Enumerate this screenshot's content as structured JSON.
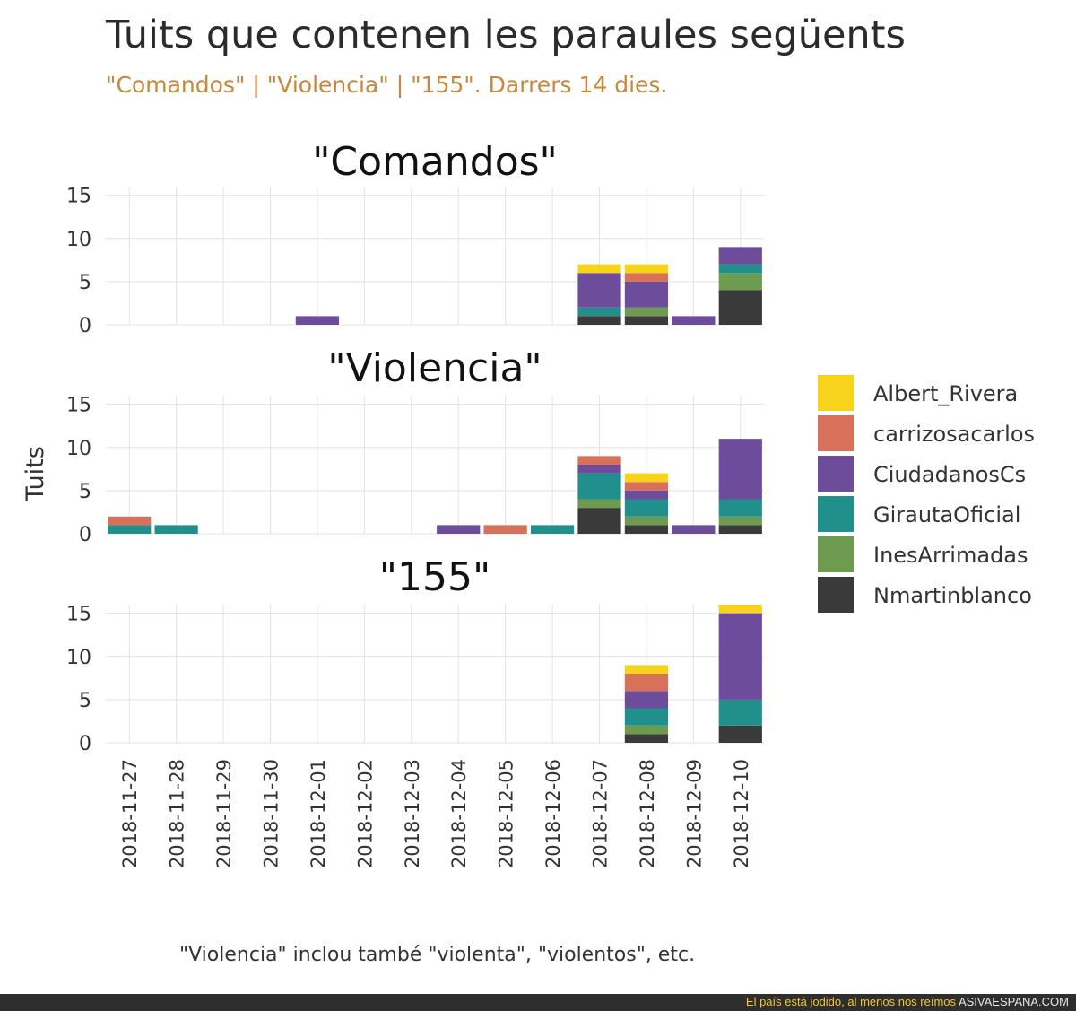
{
  "title": "Tuits que contenen les paraules següents",
  "subtitle": "\"Comandos\" | \"Violencia\" | \"155\". Darrers 14 dies.",
  "caption": "\"Violencia\" inclou també \"violenta\", \"violentos\", etc.",
  "footer": {
    "tagline": "El país está jodido, al menos nos reímos",
    "site": "ASIVAESPANA.COM"
  },
  "chart_data": {
    "type": "bar",
    "stacked": true,
    "facets": [
      "\"Comandos\"",
      "\"Violencia\"",
      "\"155\""
    ],
    "ylabel": "Tuits",
    "xlabel": "",
    "ylim": [
      0,
      16
    ],
    "yticks": [
      0,
      5,
      10,
      15
    ],
    "grid": true,
    "legend_position": "right",
    "categories": [
      "2018-11-27",
      "2018-11-28",
      "2018-11-29",
      "2018-11-30",
      "2018-12-01",
      "2018-12-02",
      "2018-12-03",
      "2018-12-04",
      "2018-12-05",
      "2018-12-06",
      "2018-12-07",
      "2018-12-08",
      "2018-12-09",
      "2018-12-10"
    ],
    "series_order_bottom_to_top": [
      "Nmartinblanco",
      "InesArrimadas",
      "GirautaOficial",
      "CiudadanosCs",
      "carrizosacarlos",
      "Albert_Rivera"
    ],
    "legend_order": [
      "Albert_Rivera",
      "carrizosacarlos",
      "CiudadanosCs",
      "GirautaOficial",
      "InesArrimadas",
      "Nmartinblanco"
    ],
    "colors": {
      "Albert_Rivera": "#f7d31c",
      "carrizosacarlos": "#d9705a",
      "CiudadanosCs": "#6d4c9c",
      "GirautaOficial": "#21908d",
      "InesArrimadas": "#6e9b4f",
      "Nmartinblanco": "#3a3a3a"
    },
    "panels": [
      {
        "facet": "\"Comandos\"",
        "series": [
          {
            "name": "Albert_Rivera",
            "values": [
              0,
              0,
              0,
              0,
              0,
              0,
              0,
              0,
              0,
              0,
              1,
              1,
              0,
              0
            ]
          },
          {
            "name": "carrizosacarlos",
            "values": [
              0,
              0,
              0,
              0,
              0,
              0,
              0,
              0,
              0,
              0,
              0,
              1,
              0,
              0
            ]
          },
          {
            "name": "CiudadanosCs",
            "values": [
              0,
              0,
              0,
              0,
              1,
              0,
              0,
              0,
              0,
              0,
              4,
              3,
              1,
              2
            ]
          },
          {
            "name": "GirautaOficial",
            "values": [
              0,
              0,
              0,
              0,
              0,
              0,
              0,
              0,
              0,
              0,
              1,
              0,
              0,
              1
            ]
          },
          {
            "name": "InesArrimadas",
            "values": [
              0,
              0,
              0,
              0,
              0,
              0,
              0,
              0,
              0,
              0,
              0,
              1,
              0,
              2
            ]
          },
          {
            "name": "Nmartinblanco",
            "values": [
              0,
              0,
              0,
              0,
              0,
              0,
              0,
              0,
              0,
              0,
              1,
              1,
              0,
              4
            ]
          }
        ]
      },
      {
        "facet": "\"Violencia\"",
        "series": [
          {
            "name": "Albert_Rivera",
            "values": [
              0,
              0,
              0,
              0,
              0,
              0,
              0,
              0,
              0,
              0,
              0,
              1,
              0,
              0
            ]
          },
          {
            "name": "carrizosacarlos",
            "values": [
              1,
              0,
              0,
              0,
              0,
              0,
              0,
              0,
              1,
              0,
              1,
              1,
              0,
              0
            ]
          },
          {
            "name": "CiudadanosCs",
            "values": [
              0,
              0,
              0,
              0,
              0,
              0,
              0,
              1,
              0,
              0,
              1,
              1,
              1,
              7
            ]
          },
          {
            "name": "GirautaOficial",
            "values": [
              1,
              1,
              0,
              0,
              0,
              0,
              0,
              0,
              0,
              1,
              3,
              2,
              0,
              2
            ]
          },
          {
            "name": "InesArrimadas",
            "values": [
              0,
              0,
              0,
              0,
              0,
              0,
              0,
              0,
              0,
              0,
              1,
              1,
              0,
              1
            ]
          },
          {
            "name": "Nmartinblanco",
            "values": [
              0,
              0,
              0,
              0,
              0,
              0,
              0,
              0,
              0,
              0,
              3,
              1,
              0,
              1
            ]
          }
        ]
      },
      {
        "facet": "\"155\"",
        "series": [
          {
            "name": "Albert_Rivera",
            "values": [
              0,
              0,
              0,
              0,
              0,
              0,
              0,
              0,
              0,
              0,
              0,
              1,
              0,
              1
            ]
          },
          {
            "name": "carrizosacarlos",
            "values": [
              0,
              0,
              0,
              0,
              0,
              0,
              0,
              0,
              0,
              0,
              0,
              2,
              0,
              0
            ]
          },
          {
            "name": "CiudadanosCs",
            "values": [
              0,
              0,
              0,
              0,
              0,
              0,
              0,
              0,
              0,
              0,
              0,
              2,
              0,
              10
            ]
          },
          {
            "name": "GirautaOficial",
            "values": [
              0,
              0,
              0,
              0,
              0,
              0,
              0,
              0,
              0,
              0,
              0,
              2,
              0,
              3
            ]
          },
          {
            "name": "InesArrimadas",
            "values": [
              0,
              0,
              0,
              0,
              0,
              0,
              0,
              0,
              0,
              0,
              0,
              1,
              0,
              0
            ]
          },
          {
            "name": "Nmartinblanco",
            "values": [
              0,
              0,
              0,
              0,
              0,
              0,
              0,
              0,
              0,
              0,
              0,
              1,
              0,
              2
            ]
          }
        ]
      }
    ]
  }
}
